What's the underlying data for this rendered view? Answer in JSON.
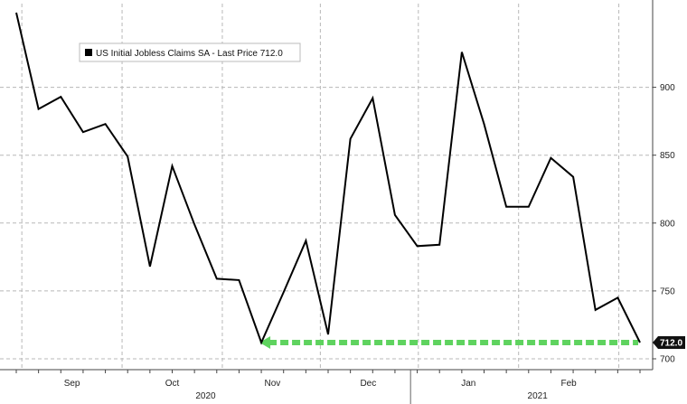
{
  "chart_data": {
    "type": "line",
    "series": [
      {
        "name": "US Initial Jobless Claims SA - Last Price",
        "color": "#000000",
        "values": [
          955,
          884,
          893,
          867,
          873,
          849,
          768,
          842,
          799,
          759,
          758,
          712,
          749,
          787,
          718,
          862,
          892,
          806,
          783,
          784,
          926,
          873,
          812,
          812,
          848,
          834,
          736,
          745,
          712
        ]
      }
    ],
    "last_value": 712.0,
    "last_value_label": "712.0",
    "legend": {
      "text": "US Initial Jobless Claims SA - Last Price 712.0",
      "position": "top-left"
    },
    "ylim": [
      692,
      955
    ],
    "y_ticks": [
      {
        "value": 700,
        "label": "700"
      },
      {
        "value": 750,
        "label": "750"
      },
      {
        "value": 800,
        "label": "800"
      },
      {
        "value": 850,
        "label": "850"
      },
      {
        "value": 900,
        "label": "900"
      }
    ],
    "x_month_labels": [
      {
        "label": "Sep",
        "at": 2.5
      },
      {
        "label": "Oct",
        "at": 7
      },
      {
        "label": "Nov",
        "at": 11.5
      },
      {
        "label": "Dec",
        "at": 15.8
      },
      {
        "label": "Jan",
        "at": 20.3
      },
      {
        "label": "Feb",
        "at": 24.8
      }
    ],
    "x_year_labels": [
      {
        "label": "2020",
        "at": 8.5
      },
      {
        "label": "2021",
        "at": 23.4
      }
    ],
    "year_divider_at": 17.7,
    "reference_line": {
      "value": 712,
      "from_index": 11,
      "to_index": 28,
      "color": "#5fd35f"
    },
    "grid": true
  }
}
